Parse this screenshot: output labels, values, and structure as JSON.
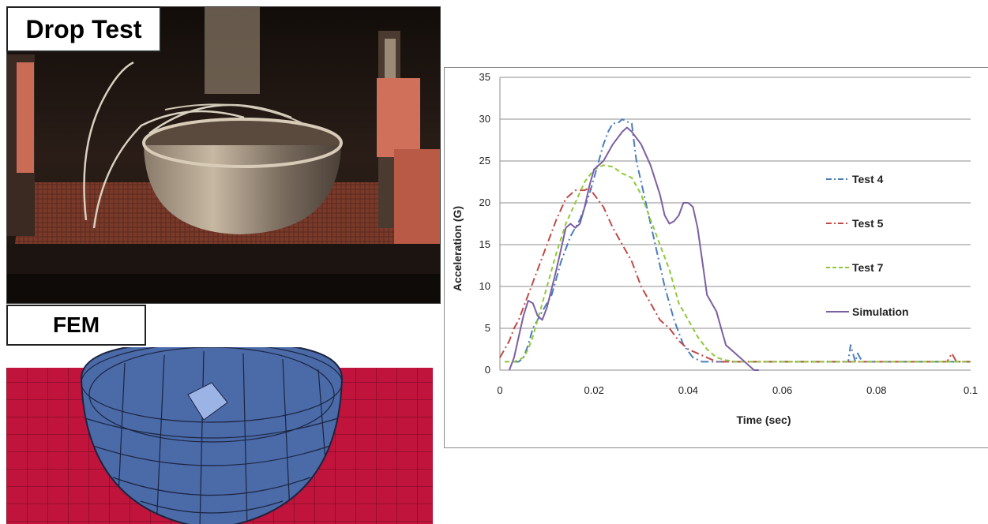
{
  "photo_panel": {
    "label": "Drop Test"
  },
  "fem_panel": {
    "label": "FEM"
  },
  "chart_data": {
    "type": "line",
    "title": "",
    "xlabel": "Time (sec)",
    "ylabel": "Acceleration (G)",
    "xlim": [
      0,
      0.1
    ],
    "ylim": [
      0,
      35
    ],
    "xticks": [
      0,
      0.02,
      0.04,
      0.06,
      0.08,
      0.1
    ],
    "xtick_labels": [
      "0",
      "0.02",
      "0.04",
      "0.06",
      "0.08",
      "0.1"
    ],
    "yticks": [
      0,
      5,
      10,
      15,
      20,
      25,
      30,
      35
    ],
    "ytick_labels": [
      "0",
      "5",
      "10",
      "15",
      "20",
      "25",
      "30",
      "35"
    ],
    "grid": "horizontal",
    "legend_position": "right",
    "series": [
      {
        "name": "Test 4",
        "color": "#4a7ebb",
        "dash": "dash-dot",
        "x": [
          0.003,
          0.004,
          0.005,
          0.006,
          0.007,
          0.009,
          0.011,
          0.013,
          0.015,
          0.017,
          0.019,
          0.021,
          0.022,
          0.023,
          0.024,
          0.025,
          0.026,
          0.027,
          0.028,
          0.029,
          0.031,
          0.033,
          0.035,
          0.037,
          0.039,
          0.041,
          0.043,
          0.045,
          0.047,
          0.049,
          0.051,
          0.06,
          0.074,
          0.0745,
          0.075,
          0.0755,
          0.076,
          0.0765,
          0.077,
          0.09,
          0.1
        ],
        "y": [
          1,
          1,
          1.5,
          3,
          5,
          7,
          9,
          13,
          16,
          18,
          21,
          25,
          27,
          28.5,
          29.5,
          29.5,
          30,
          29.7,
          29.5,
          25,
          20,
          15,
          10,
          6,
          3,
          1.5,
          1,
          1,
          1,
          1,
          1,
          1,
          1,
          3,
          2,
          1,
          2,
          1.5,
          1,
          1,
          1
        ]
      },
      {
        "name": "Test 5",
        "color": "#be4b48",
        "dash": "dash-dot",
        "x": [
          0,
          0.001,
          0.002,
          0.003,
          0.004,
          0.005,
          0.006,
          0.008,
          0.01,
          0.012,
          0.014,
          0.016,
          0.018,
          0.019,
          0.02,
          0.022,
          0.024,
          0.026,
          0.028,
          0.03,
          0.032,
          0.034,
          0.036,
          0.038,
          0.04,
          0.042,
          0.044,
          0.046,
          0.048,
          0.05,
          0.06,
          0.08,
          0.095,
          0.096,
          0.097,
          0.1
        ],
        "y": [
          1.5,
          2.5,
          3.5,
          5,
          6,
          7.5,
          9,
          12,
          15,
          18,
          20.5,
          21.5,
          21.5,
          21.8,
          21,
          19.5,
          17,
          15,
          13,
          10,
          8,
          6,
          5,
          3.5,
          2.5,
          2,
          1.5,
          1,
          1,
          1,
          1,
          1,
          1,
          2,
          1,
          1
        ]
      },
      {
        "name": "Test 7",
        "color": "#8fc93a",
        "dash": "dash",
        "x": [
          0.001,
          0.003,
          0.005,
          0.006,
          0.007,
          0.008,
          0.01,
          0.012,
          0.014,
          0.016,
          0.018,
          0.02,
          0.022,
          0.024,
          0.026,
          0.028,
          0.03,
          0.032,
          0.034,
          0.036,
          0.038,
          0.04,
          0.042,
          0.044,
          0.046,
          0.048,
          0.05,
          0.052,
          0.06,
          0.08,
          0.1
        ],
        "y": [
          1,
          1,
          1.5,
          2.5,
          4,
          6,
          10,
          14,
          17.5,
          20,
          22.5,
          24,
          24.5,
          24.3,
          23.5,
          23,
          21,
          18,
          15,
          12,
          8,
          6,
          4,
          2.5,
          1.5,
          1.2,
          1,
          1,
          1,
          1,
          1
        ]
      },
      {
        "name": "Simulation",
        "color": "#7d5fa0",
        "dash": "solid",
        "x": [
          0.002,
          0.003,
          0.004,
          0.005,
          0.006,
          0.007,
          0.008,
          0.009,
          0.01,
          0.012,
          0.014,
          0.015,
          0.016,
          0.017,
          0.018,
          0.019,
          0.02,
          0.022,
          0.024,
          0.026,
          0.027,
          0.028,
          0.03,
          0.032,
          0.034,
          0.035,
          0.036,
          0.037,
          0.038,
          0.039,
          0.04,
          0.041,
          0.042,
          0.043,
          0.044,
          0.045,
          0.046,
          0.047,
          0.048,
          0.05,
          0.052,
          0.053,
          0.054,
          0.055
        ],
        "y": [
          0,
          1.5,
          4,
          6.5,
          8.3,
          8,
          6.5,
          6,
          7.5,
          12,
          17,
          17.5,
          17,
          17.5,
          19.5,
          22,
          24,
          25,
          27,
          28.5,
          29,
          28.5,
          27,
          24.5,
          21,
          18.5,
          17.5,
          17.8,
          18.5,
          20,
          20,
          19.5,
          17,
          13,
          9,
          8,
          7,
          5,
          3,
          2,
          1,
          0.5,
          0,
          0
        ]
      }
    ]
  }
}
